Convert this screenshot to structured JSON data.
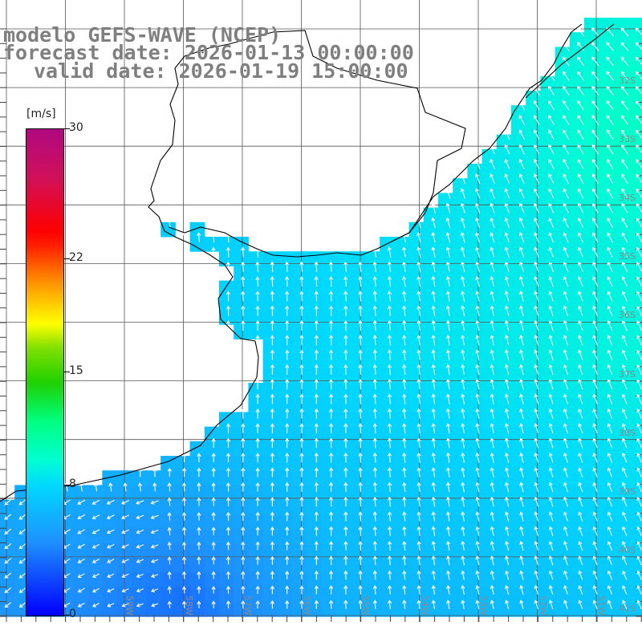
{
  "title": {
    "line1": "modelo GEFS-WAVE (NCEP)",
    "line2": "forecast date: 2026-01-13 00:00:00",
    "line3": "valid date: 2026-01-19 15:00:00"
  },
  "colorbar": {
    "unit": "[m/s]",
    "ticks": [
      {
        "value": 30,
        "label": "30"
      },
      {
        "value": 22,
        "label": "22"
      },
      {
        "value": 15,
        "label": "15"
      },
      {
        "value": 8,
        "label": "8"
      },
      {
        "value": 0,
        "label": "0"
      }
    ]
  },
  "grid": {
    "lon_labels": [
      "59W",
      "58W",
      "57W",
      "56W",
      "55W",
      "54W",
      "53W",
      "52W",
      "51W"
    ],
    "lat_labels": [
      "32S",
      "33S",
      "34S",
      "35S",
      "36S",
      "37S",
      "38S",
      "39S",
      "40S",
      "41S"
    ]
  },
  "colors": {
    "land": "#ffffff",
    "coastline": "#000000",
    "grid": "#555555",
    "arrows": "#ffffff",
    "title": "#7f7f7f"
  }
}
